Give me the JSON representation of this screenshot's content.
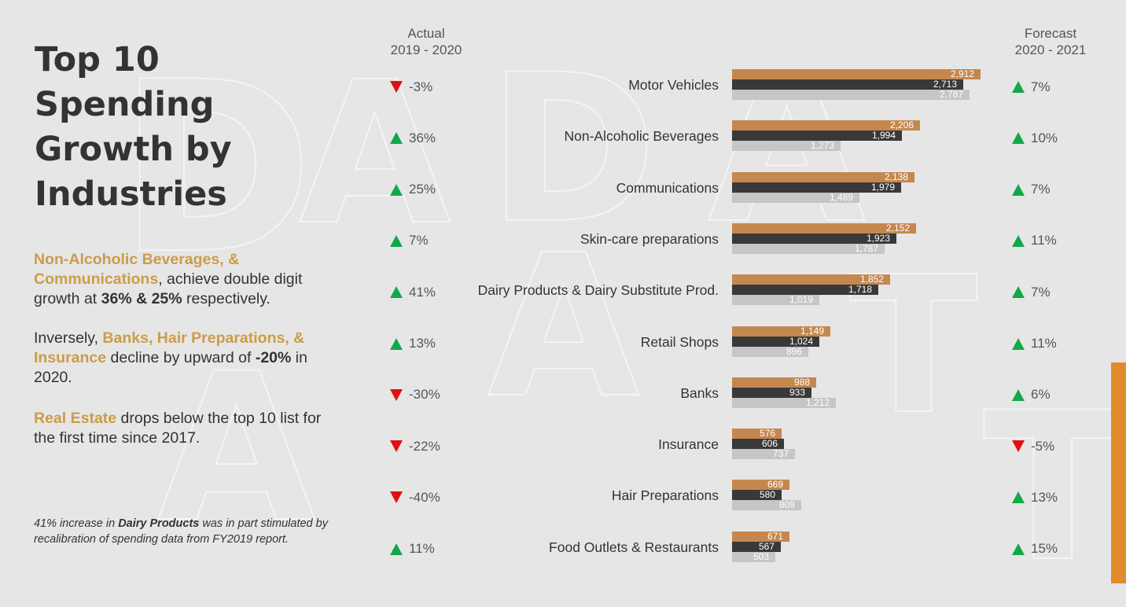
{
  "heading": {
    "title": "Top 10 Spending Growth by Industries"
  },
  "paragraphs": {
    "p1": {
      "hl1": "Non-Alcoholic Beverages, &",
      "hl2": "Communications",
      "t1": ", achieve double digit growth at ",
      "b1": "36% & 25%",
      "t2": " respectively."
    },
    "p2": {
      "t1": "Inversely, ",
      "hl": "Banks, Hair Preparations, & Insurance",
      "t2": " decline by upward of ",
      "b1": "-20%",
      "t3": " in 2020."
    },
    "p3": {
      "hl": "Real Estate",
      "t1": " drops below the top 10 list for the first time since 2017."
    }
  },
  "note": {
    "t1": "41% increase in ",
    "b1": "Dairy Products",
    "t2": " was in part stimulated by recalibration of spending data from FY2019 report."
  },
  "columns": {
    "actual_label": "Actual",
    "actual_period": "2019 - 2020",
    "forecast_label": "Forecast",
    "forecast_period": "2020 - 2021"
  },
  "colors": {
    "bar_1": "#c4884e",
    "bar_2": "#393939",
    "bar_3": "#c6c6c6",
    "up": "#12a84a",
    "down": "#e01010",
    "accent": "#e08c2e"
  },
  "chart_data": {
    "type": "bar",
    "orientation": "horizontal",
    "title": "Top 10 Spending Growth by Industries",
    "categories": [
      "Motor Vehicles",
      "Non-Alcoholic Beverages",
      "Communications",
      "Skin-care preparations",
      "Dairy Products & Dairy Substitute Prod.",
      "Retail Shops",
      "Banks",
      "Insurance",
      "Hair Preparations",
      "Food Outlets & Restaurants"
    ],
    "series": [
      {
        "name": "series-1",
        "values": [
          "2,912",
          "2,206",
          "2,138",
          "2,152",
          "1,852",
          "1,149",
          "988",
          "576",
          "669",
          "671"
        ]
      },
      {
        "name": "series-2",
        "values": [
          "2,713",
          "1,994",
          "1,979",
          "1,923",
          "1,718",
          "1,024",
          "933",
          "606",
          "580",
          "567"
        ]
      },
      {
        "name": "series-3",
        "values": [
          "2,787",
          "1,273",
          "1,489",
          "1,787",
          "1,019",
          "896",
          "1,212",
          "737",
          "809",
          "503"
        ]
      }
    ],
    "actual_change": [
      "-3%",
      "36%",
      "25%",
      "7%",
      "41%",
      "13%",
      "-30%",
      "-22%",
      "-40%",
      "11%"
    ],
    "actual_direction": [
      "down",
      "up",
      "up",
      "up",
      "up",
      "up",
      "down",
      "down",
      "down",
      "up"
    ],
    "forecast_change": [
      "7%",
      "10%",
      "7%",
      "11%",
      "7%",
      "11%",
      "6%",
      "-5%",
      "13%",
      "15%"
    ],
    "forecast_direction": [
      "up",
      "up",
      "up",
      "up",
      "up",
      "up",
      "up",
      "down",
      "up",
      "up"
    ],
    "xlim": [
      0,
      3000
    ]
  }
}
